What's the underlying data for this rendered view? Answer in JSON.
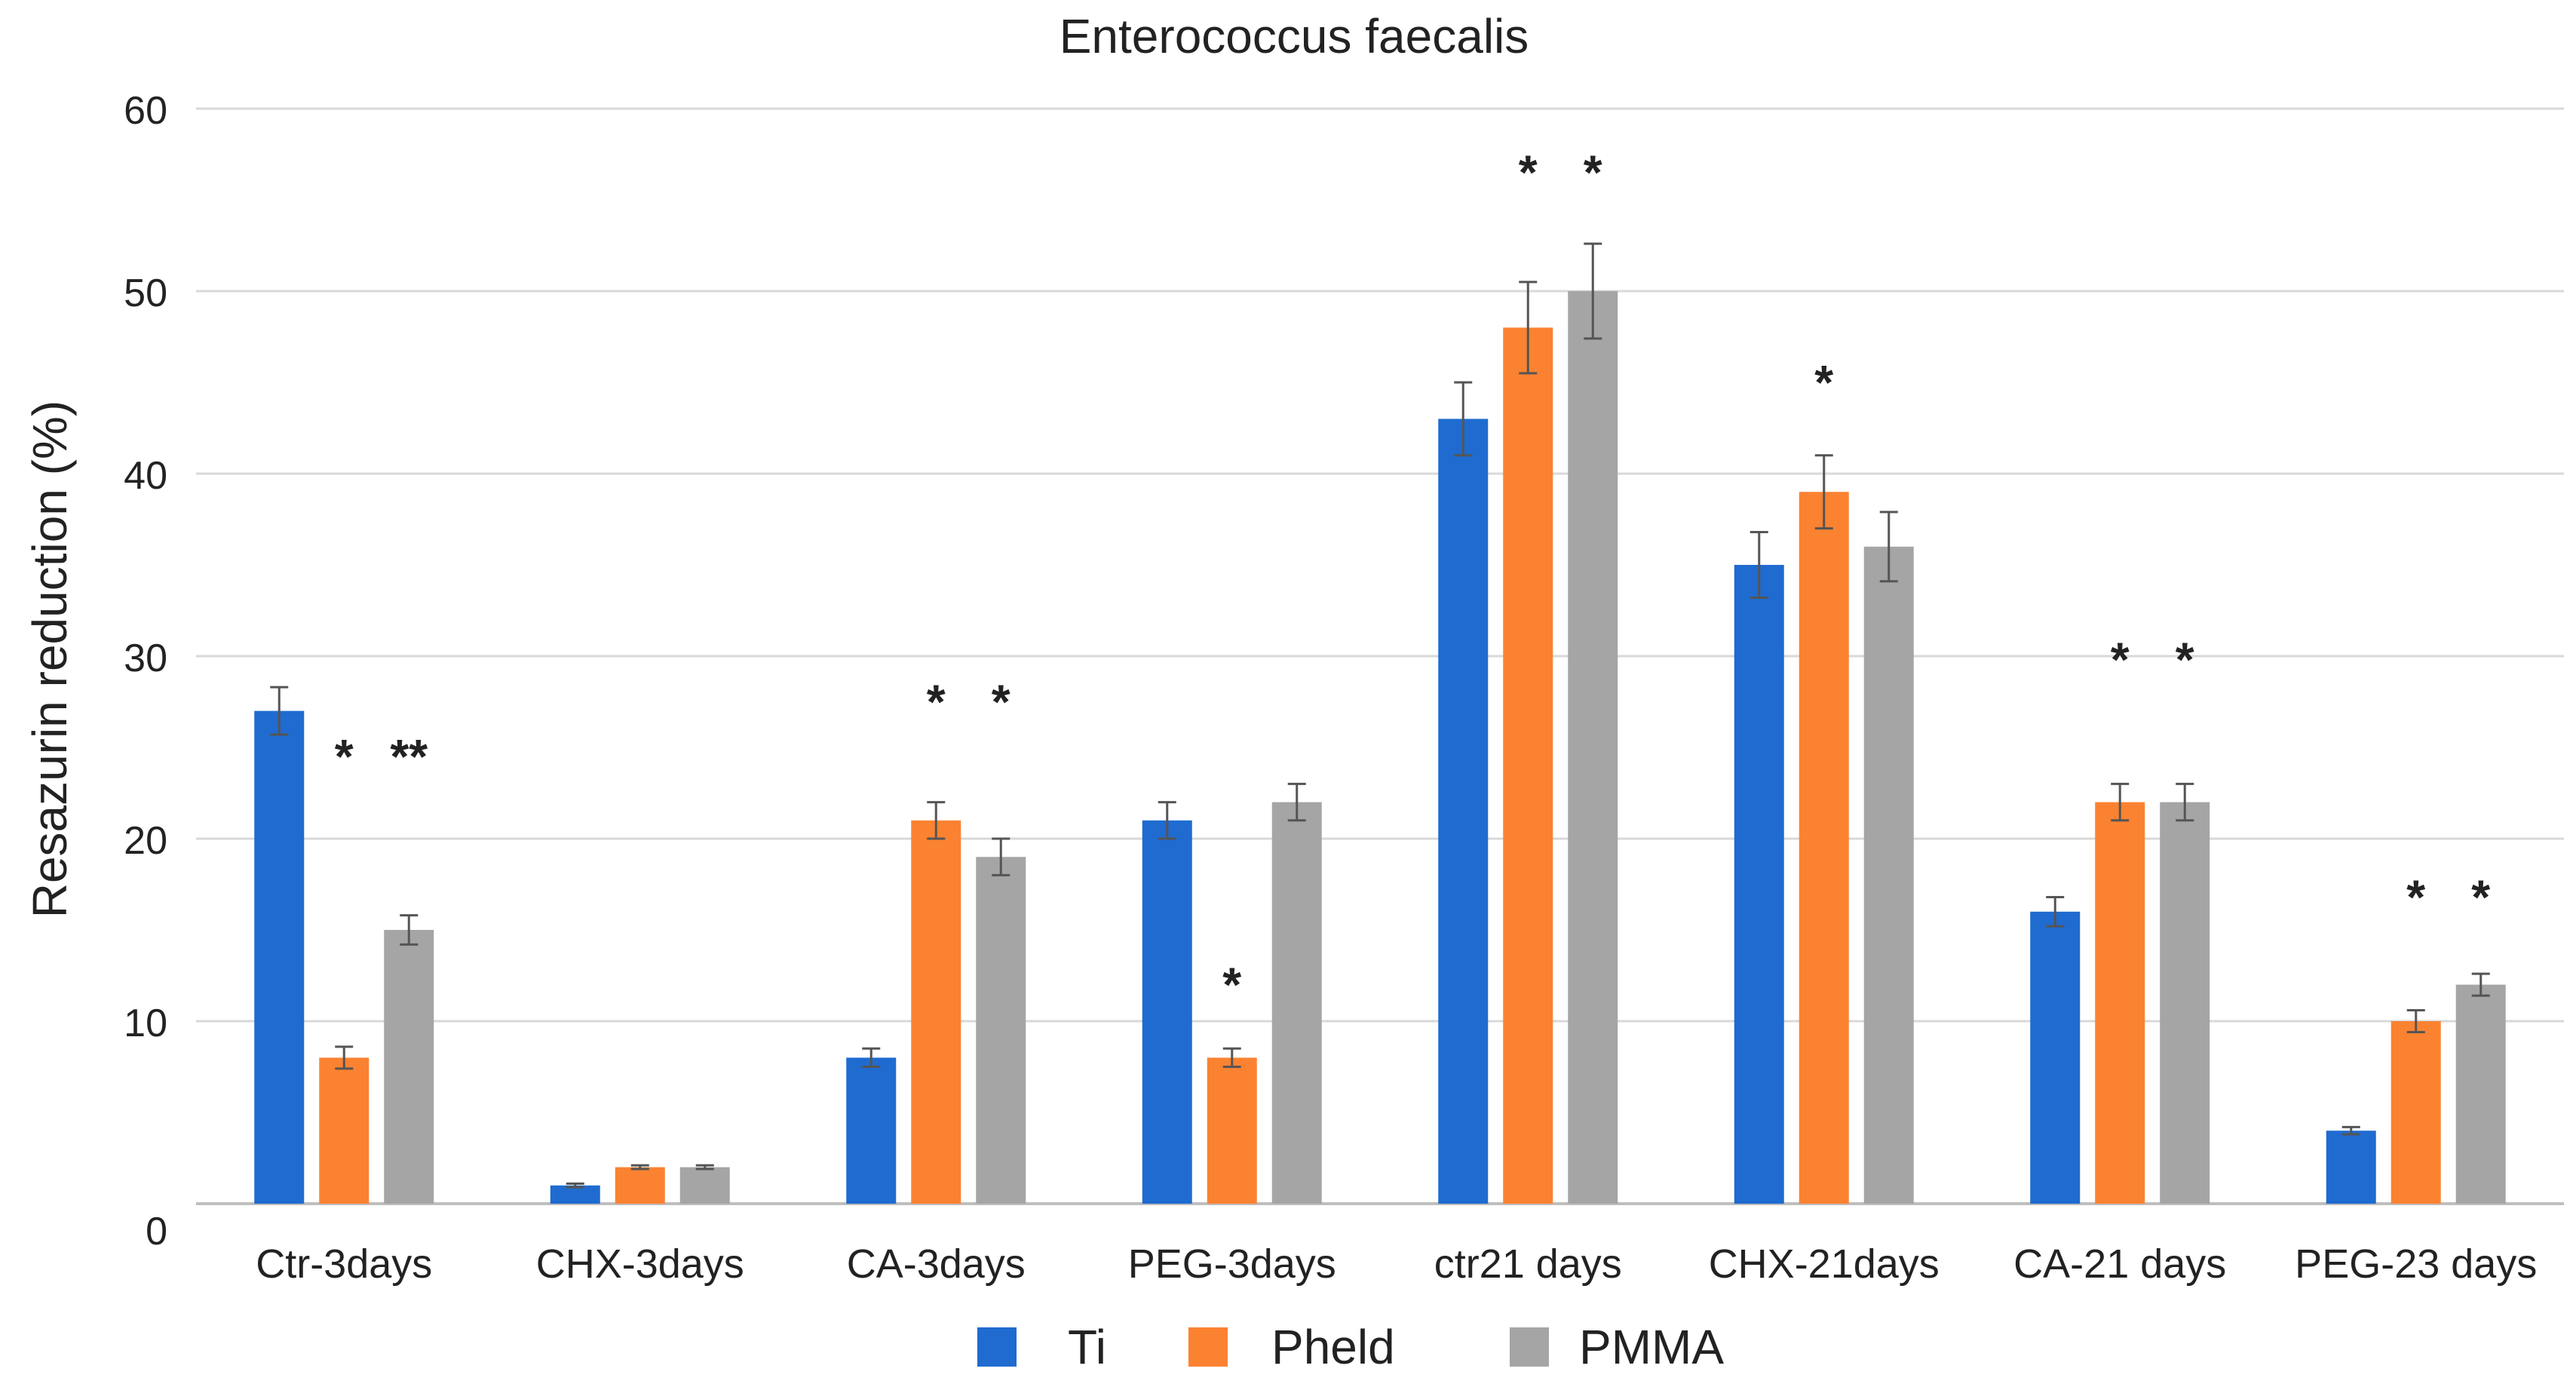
{
  "chart_data": {
    "type": "bar",
    "title": "Enterococcus faecalis",
    "xlabel": "",
    "ylabel": "Resazurin reduction (%)",
    "ylim": [
      0,
      60
    ],
    "yticks": [
      0,
      10,
      20,
      30,
      40,
      50,
      60
    ],
    "grid": true,
    "legend_position": "bottom",
    "categories": [
      "Ctr-3days",
      "CHX-3days",
      "CA-3days",
      "PEG-3days",
      "ctr21 days",
      "CHX-21days",
      "CA-21 days",
      "PEG-23 days"
    ],
    "series": [
      {
        "name": "Ti",
        "color": "#1f6bd0",
        "values": [
          27,
          1,
          8,
          21,
          43,
          35,
          16,
          4
        ],
        "errors": [
          1.3,
          0.1,
          0.5,
          1.0,
          2.0,
          1.8,
          0.8,
          0.2
        ]
      },
      {
        "name": "Pheld",
        "color": "#fb8231",
        "values": [
          8,
          2,
          21,
          8,
          48,
          39,
          22,
          10
        ],
        "errors": [
          0.6,
          0.1,
          1.0,
          0.5,
          2.5,
          2.0,
          1.0,
          0.6
        ]
      },
      {
        "name": "PMMA",
        "color": "#a5a5a5",
        "values": [
          15,
          2,
          19,
          22,
          50,
          36,
          22,
          12
        ],
        "errors": [
          0.8,
          0.1,
          1.0,
          1.0,
          2.6,
          1.9,
          1.0,
          0.6
        ]
      }
    ],
    "annotations": [
      {
        "text": "*",
        "category": 0,
        "series": 1,
        "y": 25
      },
      {
        "text": "**",
        "category": 0,
        "series": 2,
        "y": 25
      },
      {
        "text": "*",
        "category": 2,
        "series": 1,
        "y": 28
      },
      {
        "text": "*",
        "category": 2,
        "series": 2,
        "y": 28
      },
      {
        "text": "*",
        "category": 3,
        "series": 1,
        "y": 12.5
      },
      {
        "text": "*",
        "category": 4,
        "series": 1,
        "y": 57
      },
      {
        "text": "*",
        "category": 4,
        "series": 2,
        "y": 57
      },
      {
        "text": "*",
        "category": 5,
        "series": 1,
        "y": 45.5
      },
      {
        "text": "*",
        "category": 6,
        "series": 1,
        "y": 30.3
      },
      {
        "text": "*",
        "category": 6,
        "series": 2,
        "y": 30.3
      },
      {
        "text": "*",
        "category": 7,
        "series": 1,
        "y": 17.3
      },
      {
        "text": "*",
        "category": 7,
        "series": 2,
        "y": 17.3
      }
    ]
  },
  "colors": {
    "grid": "#d9d9d9",
    "axis": "#bfbfbf",
    "text": "#222222",
    "error_bar": "#555555"
  }
}
